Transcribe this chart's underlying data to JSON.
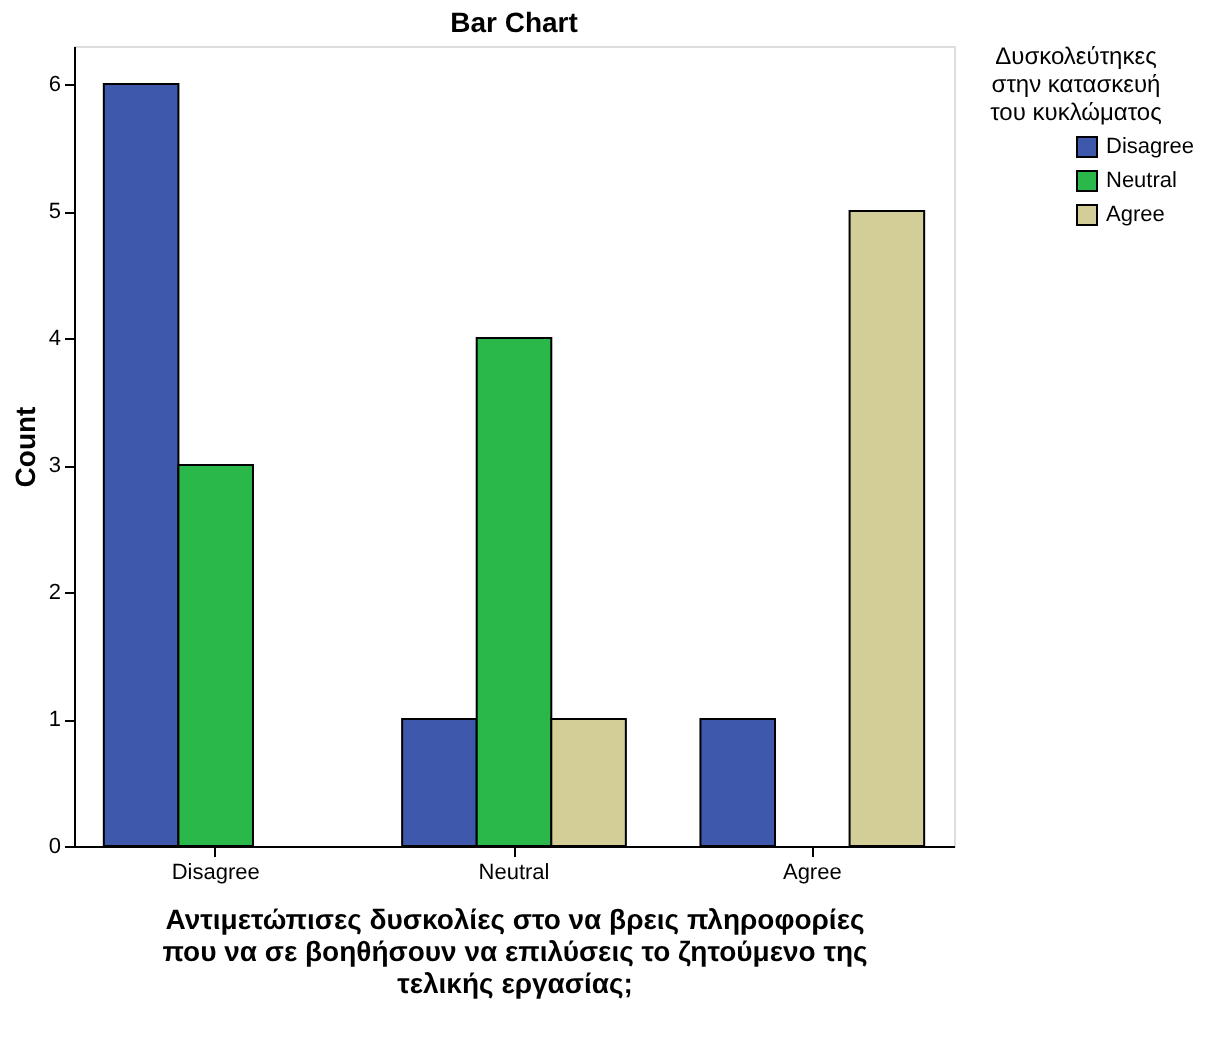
{
  "chart_data": {
    "type": "bar",
    "title": "Bar Chart",
    "xlabel": "Αντιμετώπισες δυσκολίες στο να βρεις πληροφορίες που να σε βοηθήσουν να επιλύσεις το ζητούμενο της τελικής εργασίας;",
    "ylabel": "Count",
    "legend_title": "Δυσκολεύτηκες στην κατασκευή του κυκλώματος",
    "categories": [
      "Disagree",
      "Neutral",
      "Agree"
    ],
    "series": [
      {
        "name": "Disagree",
        "color": "#3e58ac",
        "values": [
          6,
          1,
          1
        ]
      },
      {
        "name": "Neutral",
        "color": "#2ab84a",
        "values": [
          3,
          4,
          null
        ]
      },
      {
        "name": "Agree",
        "color": "#d3ce97",
        "values": [
          null,
          1,
          5
        ]
      }
    ],
    "ylim": [
      0,
      6.3
    ],
    "yticks": [
      0,
      1,
      2,
      3,
      4,
      5,
      6
    ],
    "grid": false,
    "legend": "top right"
  }
}
